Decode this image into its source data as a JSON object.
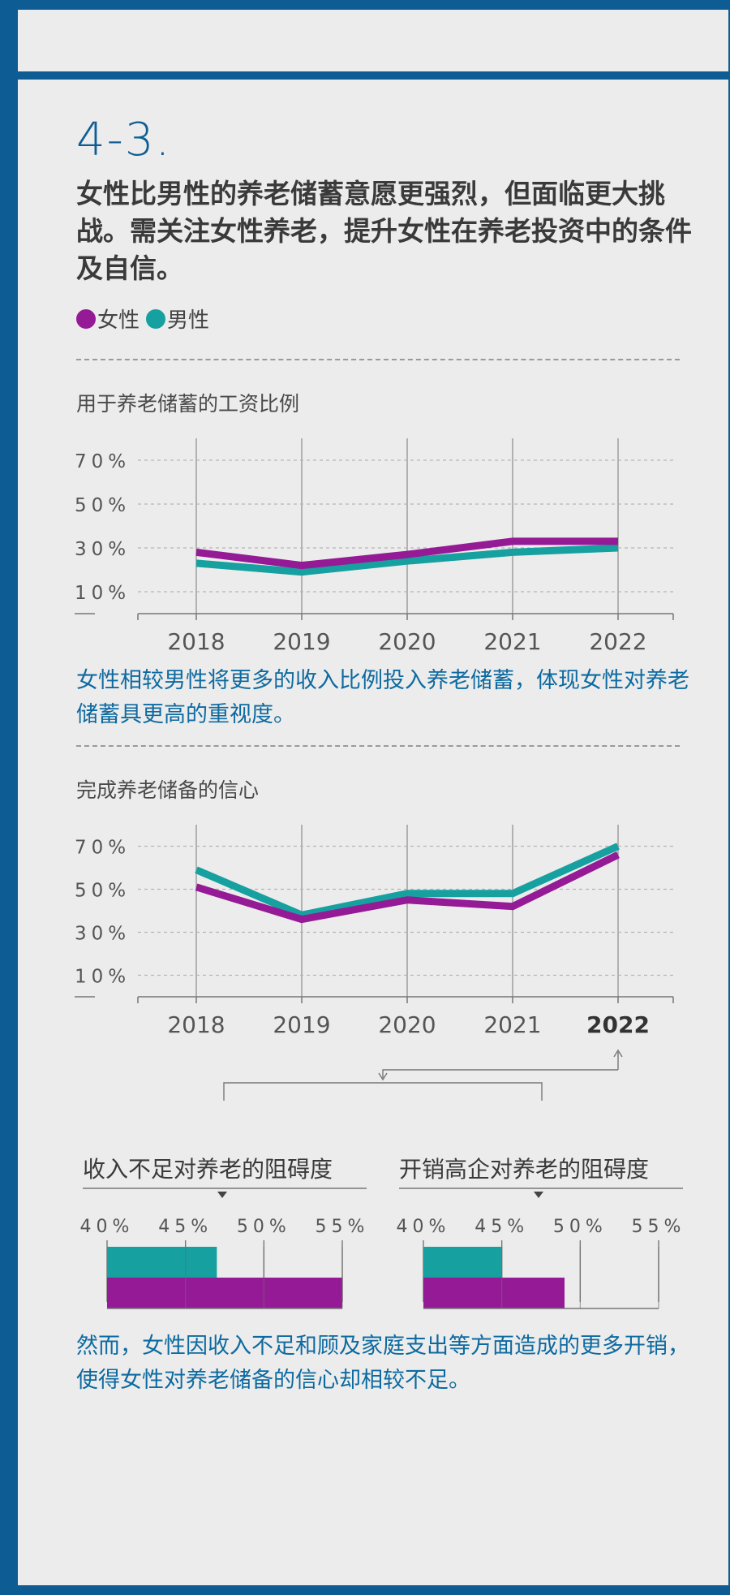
{
  "section_number": "4-3.",
  "headline": "女性比男性的养老储蓄意愿更强烈，但面临更大挑战。需关注女性养老，提升女性在养老投资中的条件及自信。",
  "legend": {
    "female": {
      "label": "女性",
      "color": "#951a96"
    },
    "male": {
      "label": "男性",
      "color": "#17a0a0"
    }
  },
  "colors": {
    "frame": "#0d5d94",
    "background": "#ececec",
    "grid": "#999999",
    "caption": "#0d6aa0"
  },
  "charts": {
    "salary": {
      "title": "用于养老储蓄的工资比例",
      "caption": "女性相较男性将更多的收入比例投入养老储蓄，体现女性对养老储蓄具更高的重视度。"
    },
    "confidence": {
      "title": "完成养老储备的信心",
      "caption": "然而，女性因收入不足和顾及家庭支出等方面造成的更多开销，使得女性对养老储备的信心却相较不足。"
    },
    "barriers": {
      "income": {
        "title": "收入不足对养老的阻碍度"
      },
      "spending": {
        "title": "开销高企对养老的阻碍度"
      }
    }
  },
  "chart_data": [
    {
      "type": "line",
      "title": "用于养老储蓄的工资比例",
      "categories": [
        "2018",
        "2019",
        "2020",
        "2021",
        "2022"
      ],
      "yticks": [
        "70%",
        "50%",
        "30%",
        "10%"
      ],
      "ylim": [
        0,
        80
      ],
      "series": [
        {
          "name": "女性",
          "values": [
            28,
            22,
            27,
            33,
            33
          ]
        },
        {
          "name": "男性",
          "values": [
            23,
            19,
            24,
            28,
            30
          ]
        }
      ]
    },
    {
      "type": "line",
      "title": "完成养老储备的信心",
      "categories": [
        "2018",
        "2019",
        "2020",
        "2021",
        "2022"
      ],
      "highlight": "2022",
      "yticks": [
        "70%",
        "50%",
        "30%",
        "10%"
      ],
      "ylim": [
        0,
        80
      ],
      "series": [
        {
          "name": "女性",
          "values": [
            51,
            36,
            45,
            42,
            66
          ]
        },
        {
          "name": "男性",
          "values": [
            59,
            38,
            48,
            48,
            70
          ]
        }
      ]
    },
    {
      "type": "bar",
      "title": "收入不足对养老的阻碍度",
      "ticks": [
        "40%",
        "45%",
        "50%",
        "55%"
      ],
      "xlim": [
        40,
        55
      ],
      "series": [
        {
          "name": "男性",
          "value": 47
        },
        {
          "name": "女性",
          "value": 55
        }
      ]
    },
    {
      "type": "bar",
      "title": "开销高企对养老的阻碍度",
      "ticks": [
        "40%",
        "45%",
        "50%",
        "55%"
      ],
      "xlim": [
        40,
        55
      ],
      "series": [
        {
          "name": "男性",
          "value": 45
        },
        {
          "name": "女性",
          "value": 49
        }
      ]
    }
  ]
}
